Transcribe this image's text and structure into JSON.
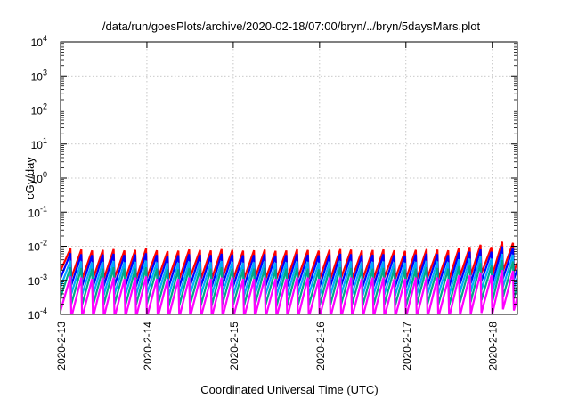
{
  "chart_data": {
    "type": "line",
    "title": "/data/run/goesPlots/archive/2020-02-18/07:00/bryn/../bryn/5daysMars.plot",
    "xlabel": "Coordinated Universal Time (UTC)",
    "ylabel": "cGy/day",
    "y_scale": "log",
    "ylim": [
      0.0001,
      10000
    ],
    "xlim": [
      "2020-02-13 00:00",
      "2020-02-18 07:00"
    ],
    "y_ticks": [
      {
        "base": "10",
        "exp": "-4",
        "value": 0.0001
      },
      {
        "base": "10",
        "exp": "-3",
        "value": 0.001
      },
      {
        "base": "10",
        "exp": "-2",
        "value": 0.01
      },
      {
        "base": "10",
        "exp": "-1",
        "value": 0.1
      },
      {
        "base": "10",
        "exp": "0",
        "value": 1
      },
      {
        "base": "10",
        "exp": "1",
        "value": 10
      },
      {
        "base": "10",
        "exp": "2",
        "value": 100
      },
      {
        "base": "10",
        "exp": "3",
        "value": 1000
      },
      {
        "base": "10",
        "exp": "4",
        "value": 10000
      }
    ],
    "x_ticks": [
      {
        "label": "2020-2-13",
        "value": "2020-02-13 00:00"
      },
      {
        "label": "2020-2-14",
        "value": "2020-02-14 00:00"
      },
      {
        "label": "2020-2-15",
        "value": "2020-02-15 00:00"
      },
      {
        "label": "2020-2-16",
        "value": "2020-02-16 00:00"
      },
      {
        "label": "2020-2-17",
        "value": "2020-02-17 00:00"
      },
      {
        "label": "2020-2-18",
        "value": "2020-02-18 00:00"
      }
    ],
    "grid": true,
    "sawtooth_period_hours": 3,
    "series": [
      {
        "color": "#ff0000",
        "peak_values": [
          0.0085,
          0.008,
          0.0075,
          0.0078,
          0.0082,
          0.0075,
          0.0078,
          0.0085,
          0.0076,
          0.0072,
          0.0074,
          0.008,
          0.0077,
          0.0075,
          0.0082,
          0.0078,
          0.0074,
          0.0076,
          0.0079,
          0.0073,
          0.0075,
          0.0081,
          0.0077,
          0.0074,
          0.0078,
          0.0082,
          0.0079,
          0.0075,
          0.0077,
          0.008,
          0.0076,
          0.0073,
          0.0078,
          0.0082,
          0.0079,
          0.0076,
          0.009,
          0.0095,
          0.011,
          0.0095,
          0.0135,
          0.0125,
          0.0105,
          0.0115,
          0.0095,
          0.0092,
          0.0098,
          0.0088,
          0.0095,
          0.009,
          0.0098,
          0.0092,
          0.0088,
          0.0095,
          0.0102,
          0.0098,
          0.0092,
          0.0099,
          0.0105,
          0.0095,
          0.0091,
          0.0098,
          0.0105,
          0.0098,
          0.0095,
          0.0088,
          0.0092,
          0.0082,
          0.0086,
          0.0088,
          0.0083,
          0.008,
          0.0085
        ],
        "trough_values": [
          0.0012,
          0.0011,
          0.0011,
          0.0011,
          0.0012,
          0.0011,
          0.0011,
          0.0012,
          0.0011,
          0.0011,
          0.0011,
          0.0012,
          0.0011,
          0.0011,
          0.0012,
          0.0011,
          0.0011,
          0.0011,
          0.0011,
          0.0011,
          0.0011,
          0.0012,
          0.0011,
          0.0011,
          0.0011,
          0.0012,
          0.0011,
          0.0011,
          0.0011,
          0.0012,
          0.0011,
          0.0011,
          0.0011,
          0.0012,
          0.0011,
          0.0011,
          0.0013,
          0.0014,
          0.0016,
          0.0014,
          0.0019,
          0.0018,
          0.0015,
          0.0017,
          0.0014,
          0.0013,
          0.0014,
          0.0013,
          0.0014,
          0.0013,
          0.0014,
          0.0013,
          0.0013,
          0.0014,
          0.0015,
          0.0014,
          0.0013,
          0.0014,
          0.0015,
          0.0014,
          0.0013,
          0.0014,
          0.0015,
          0.0014,
          0.0014,
          0.0013,
          0.0013,
          0.0012,
          0.0012,
          0.0013,
          0.0012,
          0.0012,
          0.0012
        ]
      },
      {
        "color": "#0000ff",
        "peak_values": [
          0.0062,
          0.0058,
          0.0055,
          0.0057,
          0.006,
          0.0055,
          0.0057,
          0.0062,
          0.0055,
          0.0052,
          0.0054,
          0.0058,
          0.0056,
          0.0055,
          0.006,
          0.0057,
          0.0054,
          0.0055,
          0.0058,
          0.0053,
          0.0055,
          0.0059,
          0.0056,
          0.0054,
          0.0057,
          0.006,
          0.0058,
          0.0055,
          0.0056,
          0.0058,
          0.0055,
          0.0053,
          0.0057,
          0.006,
          0.0058,
          0.0055,
          0.0066,
          0.0069,
          0.008,
          0.0069,
          0.0098,
          0.0091,
          0.0077,
          0.0084,
          0.0069,
          0.0067,
          0.0072,
          0.0064,
          0.0069,
          0.0066,
          0.0072,
          0.0067,
          0.0064,
          0.0069,
          0.0074,
          0.0072,
          0.0067,
          0.0072,
          0.0077,
          0.0069,
          0.0066,
          0.0072,
          0.0077,
          0.0072,
          0.0069,
          0.0064,
          0.0067,
          0.006,
          0.0063,
          0.0064,
          0.0061,
          0.0058,
          0.0062
        ],
        "trough_values": [
          0.00072,
          0.00068,
          0.00065,
          0.00067,
          0.0007,
          0.00065,
          0.00067,
          0.00072,
          0.00065,
          0.00062,
          0.00064,
          0.00068,
          0.00066,
          0.00065,
          0.0007,
          0.00067,
          0.00064,
          0.00065,
          0.00068,
          0.00063,
          0.00065,
          0.00069,
          0.00066,
          0.00064,
          0.00067,
          0.0007,
          0.00068,
          0.00065,
          0.00066,
          0.00068,
          0.00065,
          0.00063,
          0.00067,
          0.0007,
          0.00068,
          0.00065,
          0.00077,
          0.00081,
          0.00094,
          0.00081,
          0.00115,
          0.00107,
          0.0009,
          0.00098,
          0.00081,
          0.00079,
          0.00084,
          0.00075,
          0.00081,
          0.00077,
          0.00084,
          0.00079,
          0.00075,
          0.00081,
          0.00087,
          0.00084,
          0.00079,
          0.00084,
          0.0009,
          0.00081,
          0.00077,
          0.00084,
          0.0009,
          0.00084,
          0.00081,
          0.00075,
          0.00079,
          0.0007,
          0.00074,
          0.00075,
          0.00071,
          0.00068,
          0.00072
        ]
      },
      {
        "color": "#00aaff",
        "peak_values": [
          0.0038,
          0.0036,
          0.0034,
          0.0035,
          0.0037,
          0.0034,
          0.0035,
          0.0038,
          0.0034,
          0.0032,
          0.0033,
          0.0036,
          0.0035,
          0.0034,
          0.0037,
          0.0035,
          0.0033,
          0.0034,
          0.0036,
          0.0033,
          0.0034,
          0.0036,
          0.0035,
          0.0033,
          0.0035,
          0.0037,
          0.0036,
          0.0034,
          0.0035,
          0.0036,
          0.0034,
          0.0033,
          0.0035,
          0.0037,
          0.0036,
          0.0034,
          0.0041,
          0.0043,
          0.005,
          0.0043,
          0.006,
          0.0056,
          0.0047,
          0.0052,
          0.0043,
          0.0041,
          0.0044,
          0.004,
          0.0043,
          0.0041,
          0.0044,
          0.0041,
          0.004,
          0.0043,
          0.0046,
          0.0044,
          0.0041,
          0.0044,
          0.0047,
          0.0043,
          0.0041,
          0.0044,
          0.0047,
          0.0044,
          0.0043,
          0.004,
          0.0041,
          0.0037,
          0.0039,
          0.004,
          0.0037,
          0.0036,
          0.0038
        ],
        "trough_values": [
          0.0004,
          0.00038,
          0.00036,
          0.00037,
          0.00039,
          0.00036,
          0.00037,
          0.0004,
          0.00036,
          0.00034,
          0.00035,
          0.00038,
          0.00037,
          0.00036,
          0.00039,
          0.00037,
          0.00035,
          0.00036,
          0.00038,
          0.00035,
          0.00036,
          0.00038,
          0.00037,
          0.00035,
          0.00037,
          0.00039,
          0.00038,
          0.00036,
          0.00037,
          0.00038,
          0.00036,
          0.00035,
          0.00037,
          0.00039,
          0.00038,
          0.00036,
          0.00043,
          0.00045,
          0.00052,
          0.00045,
          0.00064,
          0.00059,
          0.0005,
          0.00055,
          0.00045,
          0.00044,
          0.00047,
          0.00042,
          0.00045,
          0.00043,
          0.00047,
          0.00044,
          0.00042,
          0.00045,
          0.00048,
          0.00047,
          0.00044,
          0.00047,
          0.0005,
          0.00045,
          0.00043,
          0.00047,
          0.0005,
          0.00047,
          0.00045,
          0.00042,
          0.00044,
          0.00039,
          0.00041,
          0.00042,
          0.00039,
          0.00038,
          0.0004
        ]
      },
      {
        "color": "#00aa88",
        "peak_values": [
          0.0024,
          0.0023,
          0.0022,
          0.0022,
          0.0024,
          0.0022,
          0.0022,
          0.0024,
          0.0022,
          0.0021,
          0.0021,
          0.0023,
          0.0022,
          0.0022,
          0.0024,
          0.0022,
          0.0021,
          0.0022,
          0.0023,
          0.0021,
          0.0022,
          0.0023,
          0.0022,
          0.0021,
          0.0022,
          0.0024,
          0.0023,
          0.0022,
          0.0022,
          0.0023,
          0.0022,
          0.0021,
          0.0022,
          0.0024,
          0.0023,
          0.0022,
          0.0026,
          0.0027,
          0.0032,
          0.0027,
          0.0039,
          0.0036,
          0.003,
          0.0033,
          0.0027,
          0.0026,
          0.0028,
          0.0025,
          0.0027,
          0.0026,
          0.0028,
          0.0026,
          0.0025,
          0.0027,
          0.0029,
          0.0028,
          0.0026,
          0.0028,
          0.003,
          0.0027,
          0.0026,
          0.0028,
          0.003,
          0.0028,
          0.0027,
          0.0025,
          0.0026,
          0.0024,
          0.0025,
          0.0025,
          0.0024,
          0.0023,
          0.0024
        ],
        "trough_values": [
          0.0002,
          0.00019,
          0.00018,
          0.00019,
          0.0002,
          0.00018,
          0.00019,
          0.0002,
          0.00018,
          0.00017,
          0.00018,
          0.00019,
          0.00018,
          0.00018,
          0.0002,
          0.00019,
          0.00018,
          0.00018,
          0.00019,
          0.00017,
          0.00018,
          0.00019,
          0.00018,
          0.00018,
          0.00019,
          0.0002,
          0.00019,
          0.00018,
          0.00018,
          0.00019,
          0.00018,
          0.00017,
          0.00019,
          0.0002,
          0.00019,
          0.00018,
          0.00022,
          0.00023,
          0.00026,
          0.00023,
          0.00032,
          0.0003,
          0.00025,
          0.00027,
          0.00023,
          0.00022,
          0.00024,
          0.00021,
          0.00023,
          0.00022,
          0.00024,
          0.00022,
          0.00021,
          0.00023,
          0.00024,
          0.00024,
          0.00022,
          0.00024,
          0.00025,
          0.00023,
          0.00022,
          0.00024,
          0.00025,
          0.00024,
          0.00023,
          0.00021,
          0.00022,
          0.0002,
          0.00021,
          0.00021,
          0.0002,
          0.00019,
          0.0002
        ]
      },
      {
        "color": "#ff00ff",
        "peak_values": [
          0.0013,
          0.0012,
          0.0011,
          0.0012,
          0.0012,
          0.0011,
          0.0012,
          0.0013,
          0.0011,
          0.0011,
          0.0011,
          0.0012,
          0.0012,
          0.0011,
          0.0012,
          0.0012,
          0.0011,
          0.0011,
          0.0012,
          0.0011,
          0.0011,
          0.0012,
          0.0012,
          0.0011,
          0.0012,
          0.0012,
          0.0012,
          0.0011,
          0.0012,
          0.0012,
          0.0011,
          0.0011,
          0.0012,
          0.0012,
          0.0012,
          0.0011,
          0.0014,
          0.0014,
          0.0017,
          0.0014,
          0.002,
          0.0019,
          0.0016,
          0.0017,
          0.0014,
          0.0014,
          0.0015,
          0.0013,
          0.0014,
          0.0014,
          0.0015,
          0.0014,
          0.0013,
          0.0014,
          0.0015,
          0.0015,
          0.0014,
          0.0015,
          0.0016,
          0.0014,
          0.0014,
          0.0015,
          0.0016,
          0.0015,
          0.0014,
          0.0013,
          0.0014,
          0.0012,
          0.0013,
          0.0013,
          0.0012,
          0.0012,
          0.0013
        ],
        "trough_values": [
          8e-05,
          8e-05,
          8e-05,
          8e-05,
          8e-05,
          8e-05,
          8e-05,
          8e-05,
          8e-05,
          8e-05,
          8e-05,
          8e-05,
          8e-05,
          8e-05,
          8e-05,
          8e-05,
          8e-05,
          8e-05,
          8e-05,
          8e-05,
          8e-05,
          8e-05,
          8e-05,
          8e-05,
          8e-05,
          8e-05,
          8e-05,
          8e-05,
          8e-05,
          8e-05,
          8e-05,
          8e-05,
          8e-05,
          8e-05,
          8e-05,
          8e-05,
          9e-05,
          0.0001,
          0.00011,
          0.0001,
          0.00014,
          0.00013,
          0.00011,
          0.00012,
          0.0001,
          9e-05,
          0.0001,
          9e-05,
          0.0001,
          9e-05,
          0.0001,
          9e-05,
          9e-05,
          0.0001,
          0.0001,
          0.0001,
          9e-05,
          0.0001,
          0.00011,
          0.0001,
          9e-05,
          0.0001,
          0.00011,
          0.0001,
          0.0001,
          9e-05,
          9e-05,
          8e-05,
          9e-05,
          9e-05,
          8e-05,
          8e-05,
          8e-05
        ]
      }
    ]
  }
}
